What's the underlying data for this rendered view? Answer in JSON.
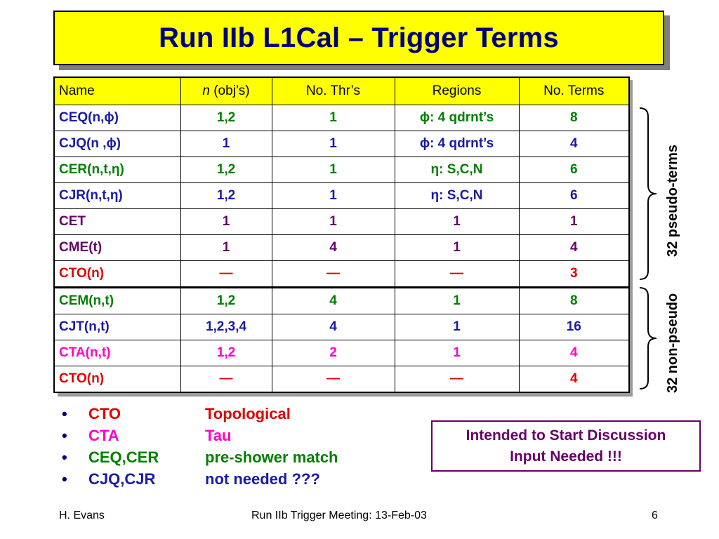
{
  "title": "Run IIb L1Cal – Trigger Terms",
  "table": {
    "headers": [
      "Name",
      "n",
      " (obj’s)",
      "No. Thr’s",
      "Regions",
      "No. Terms"
    ],
    "rows": [
      {
        "name": "CEQ(n,ϕ)",
        "n": "1,2",
        "thr": "1",
        "regions": "ϕ: 4 qdrnt’s",
        "terms": "8",
        "name_color": "#1a1aa6",
        "val_color": "#008000"
      },
      {
        "name": "CJQ(n ,ϕ)",
        "n": "1",
        "thr": "1",
        "regions": "ϕ: 4 qdrnt’s",
        "terms": "4",
        "name_color": "#1a1aa6",
        "val_color": "#1a1aa6"
      },
      {
        "name": "CER(n,t,η)",
        "n": "1,2",
        "thr": "1",
        "regions": "η: S,C,N",
        "terms": "6",
        "name_color": "#008000",
        "val_color": "#008000"
      },
      {
        "name": "CJR(n,t,η)",
        "n": "1,2",
        "thr": "1",
        "regions": "η: S,C,N",
        "terms": "6",
        "name_color": "#1a1aa6",
        "val_color": "#1a1aa6"
      },
      {
        "name": "CET",
        "n": "1",
        "thr": "1",
        "regions": "1",
        "terms": "1",
        "name_color": "#660066",
        "val_color": "#660066"
      },
      {
        "name": "CME(t)",
        "n": "1",
        "thr": "4",
        "regions": "1",
        "terms": "4",
        "name_color": "#660066",
        "val_color": "#660066"
      },
      {
        "name": "CTO(n)",
        "n": "—",
        "thr": "—",
        "regions": "—",
        "terms": "3",
        "name_color": "#e00000",
        "val_color": "#e00000"
      },
      {
        "name": "CEM(n,t)",
        "n": "1,2",
        "thr": "4",
        "regions": "1",
        "terms": "8",
        "name_color": "#008000",
        "val_color": "#008000"
      },
      {
        "name": "CJT(n,t)",
        "n": "1,2,3,4",
        "thr": "4",
        "regions": "1",
        "terms": "16",
        "name_color": "#1a1aa6",
        "val_color": "#1a1aa6"
      },
      {
        "name": "CTA(n,t)",
        "n": "1,2",
        "thr": "2",
        "regions": "1",
        "terms": "4",
        "name_color": "#ff00cc",
        "val_color": "#ff00cc"
      },
      {
        "name": "CTO(n)",
        "n": "—",
        "thr": "—",
        "regions": "—",
        "terms": "4",
        "name_color": "#e00000",
        "val_color": "#e00000"
      }
    ]
  },
  "brace_labels": {
    "pseudo": "32 pseudo-terms",
    "non_pseudo": "32 non-pseudo"
  },
  "bullets": [
    {
      "marker": "•",
      "term": "CTO",
      "desc": "Topological",
      "color": "#e00000"
    },
    {
      "marker": "•",
      "term": "CTA",
      "desc": "Tau",
      "color": "#ff00cc"
    },
    {
      "marker": "•",
      "term": "CEQ,CER",
      "desc": "pre-shower match",
      "color": "#008000"
    },
    {
      "marker": "•",
      "term": "CJQ,CJR",
      "desc": "not needed ???",
      "color": "#1a1aa6"
    }
  ],
  "note": {
    "line1": "Intended to Start Discussion",
    "line2": "Input Needed !!!"
  },
  "footer": {
    "author": "H. Evans",
    "meeting": "Run IIb Trigger Meeting: 13-Feb-03",
    "page": "6"
  }
}
